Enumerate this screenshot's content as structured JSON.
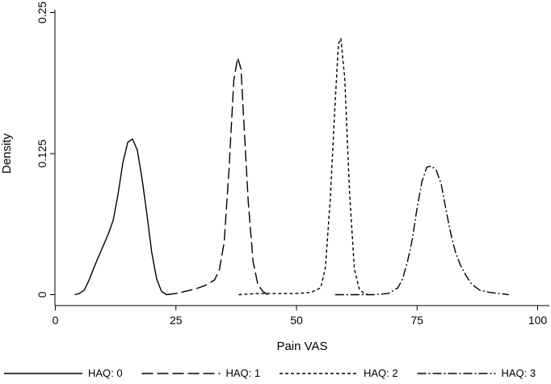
{
  "chart_data": {
    "type": "line",
    "title": "",
    "xlabel": "Pain VAS",
    "ylabel": "Density",
    "xlim": [
      0,
      100
    ],
    "ylim": [
      0,
      0.25
    ],
    "xticks": [
      0,
      25,
      50,
      75,
      100
    ],
    "xtick_labels": [
      "0",
      "25",
      "50",
      "75",
      "100"
    ],
    "yticks": [
      0,
      0.125,
      0.25
    ],
    "ytick_labels": [
      "0",
      "0.125",
      "0.25"
    ],
    "grid": false,
    "legend_position": "bottom",
    "series": [
      {
        "name": "HAQ: 0",
        "dash": "solid",
        "points": [
          [
            4,
            0
          ],
          [
            5,
            0.001
          ],
          [
            6,
            0.004
          ],
          [
            7,
            0.013
          ],
          [
            8,
            0.024
          ],
          [
            9,
            0.034
          ],
          [
            10,
            0.044
          ],
          [
            11,
            0.054
          ],
          [
            12,
            0.066
          ],
          [
            13,
            0.089
          ],
          [
            14,
            0.117
          ],
          [
            15,
            0.135
          ],
          [
            16,
            0.138
          ],
          [
            17,
            0.128
          ],
          [
            18,
            0.102
          ],
          [
            19,
            0.071
          ],
          [
            20,
            0.037
          ],
          [
            21,
            0.014
          ],
          [
            22,
            0.003
          ],
          [
            23,
            0
          ]
        ]
      },
      {
        "name": "HAQ: 1",
        "dash": "long-dash",
        "points": [
          [
            23,
            0
          ],
          [
            25,
            0.001
          ],
          [
            27,
            0.003
          ],
          [
            29,
            0.005
          ],
          [
            31,
            0.008
          ],
          [
            33,
            0.013
          ],
          [
            34,
            0.022
          ],
          [
            35,
            0.046
          ],
          [
            36,
            0.11
          ],
          [
            37,
            0.19
          ],
          [
            37.8,
            0.21
          ],
          [
            38.5,
            0.2
          ],
          [
            39,
            0.16
          ],
          [
            40,
            0.082
          ],
          [
            41,
            0.029
          ],
          [
            42,
            0.009
          ],
          [
            43,
            0.003
          ],
          [
            44,
            0
          ]
        ]
      },
      {
        "name": "HAQ: 2",
        "dash": "short-dash",
        "points": [
          [
            38,
            0
          ],
          [
            42,
            0.001
          ],
          [
            46,
            0.001
          ],
          [
            50,
            0.001
          ],
          [
            53,
            0.002
          ],
          [
            55,
            0.006
          ],
          [
            56,
            0.024
          ],
          [
            57,
            0.085
          ],
          [
            58,
            0.17
          ],
          [
            58.7,
            0.222
          ],
          [
            59.2,
            0.227
          ],
          [
            60,
            0.192
          ],
          [
            61,
            0.09
          ],
          [
            62,
            0.023
          ],
          [
            63,
            0.005
          ],
          [
            64,
            0.001
          ],
          [
            65,
            0
          ]
        ]
      },
      {
        "name": "HAQ: 3",
        "dash": "dash-dot",
        "points": [
          [
            58,
            0
          ],
          [
            62,
            0
          ],
          [
            66,
            0
          ],
          [
            69,
            0.001
          ],
          [
            71,
            0.006
          ],
          [
            72,
            0.014
          ],
          [
            73,
            0.029
          ],
          [
            74,
            0.049
          ],
          [
            75,
            0.077
          ],
          [
            76,
            0.1
          ],
          [
            77,
            0.113
          ],
          [
            78,
            0.114
          ],
          [
            79,
            0.11
          ],
          [
            80,
            0.098
          ],
          [
            81,
            0.075
          ],
          [
            82,
            0.054
          ],
          [
            83,
            0.037
          ],
          [
            84,
            0.026
          ],
          [
            85,
            0.018
          ],
          [
            86,
            0.011
          ],
          [
            87,
            0.007
          ],
          [
            88,
            0.004
          ],
          [
            90,
            0.002
          ],
          [
            92,
            0.001
          ],
          [
            94,
            0
          ]
        ]
      }
    ]
  }
}
